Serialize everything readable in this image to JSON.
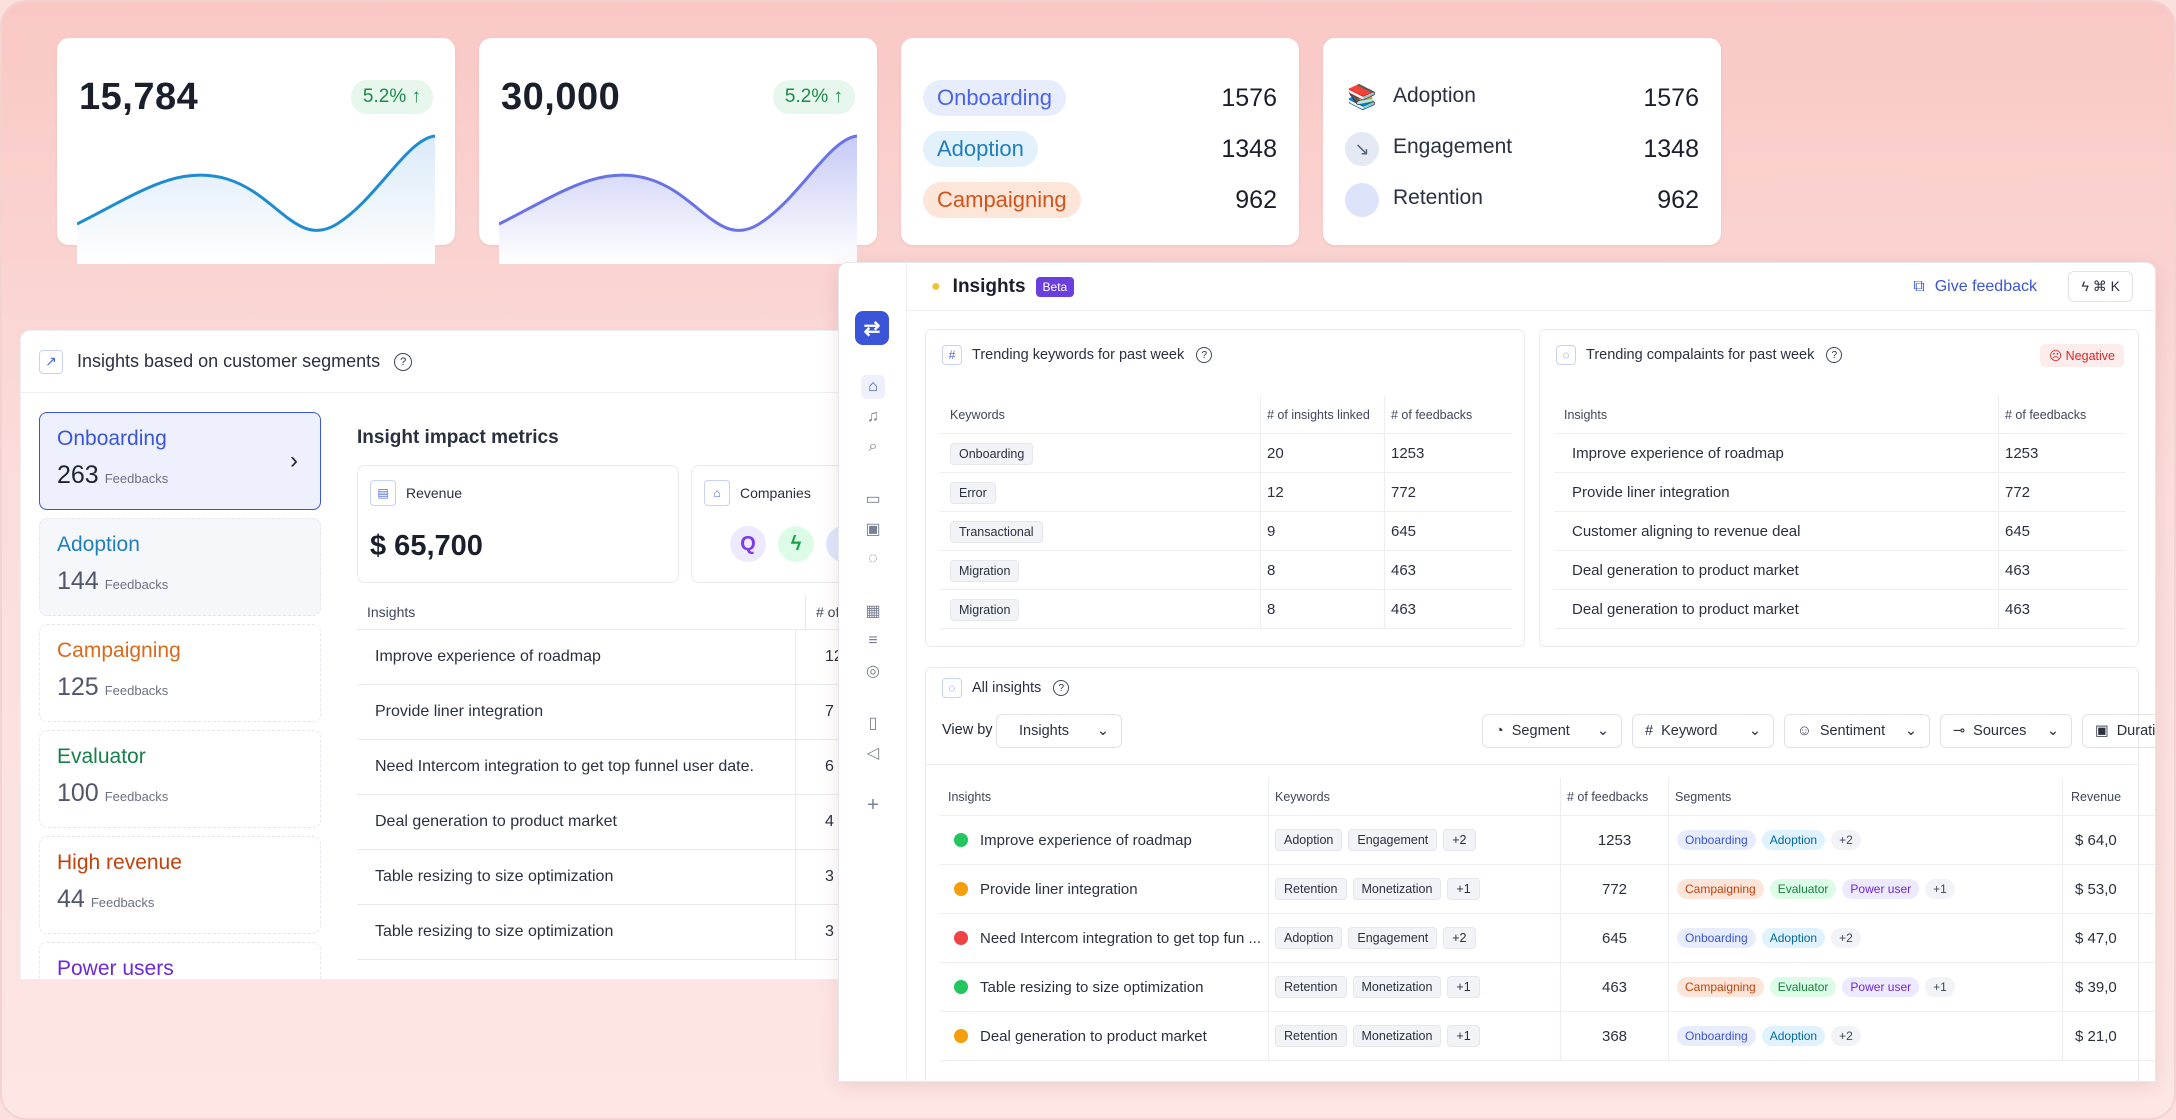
{
  "stats": [
    {
      "value": "15,784",
      "change": "5.2%",
      "color": "#1f8bd1"
    },
    {
      "value": "30,000",
      "change": "5.2%",
      "color": "#6a72e8"
    }
  ],
  "segment_counts": [
    {
      "label": "Onboarding",
      "value": "1576",
      "bg": "#e7edfd",
      "fg": "#4b64e6"
    },
    {
      "label": "Adoption",
      "value": "1348",
      "bg": "#e2f1fb",
      "fg": "#1f7fbf"
    },
    {
      "label": "Campaigning",
      "value": "962",
      "bg": "#fde6d9",
      "fg": "#d2541b"
    }
  ],
  "icon_counts": [
    {
      "label": "Adoption",
      "value": "1576",
      "icon": "books-icon"
    },
    {
      "label": "Engagement",
      "value": "1348",
      "icon": "chart-icon"
    },
    {
      "label": "Retention",
      "value": "962",
      "icon": "circle-icon"
    }
  ],
  "left": {
    "title": "Insights based on customer segments",
    "segments": [
      {
        "name": "Onboarding",
        "count": "263",
        "unit": "Feedbacks",
        "color": "#3b55d9"
      },
      {
        "name": "Adoption",
        "count": "144",
        "unit": "Feedbacks",
        "color": "#1f7fbf"
      },
      {
        "name": "Campaigning",
        "count": "125",
        "unit": "Feedbacks",
        "color": "#d96a1b"
      },
      {
        "name": "Evaluator",
        "count": "100",
        "unit": "Feedbacks",
        "color": "#17804a"
      },
      {
        "name": "High revenue",
        "count": "44",
        "unit": "Feedbacks",
        "color": "#c2410c"
      },
      {
        "name": "Power users",
        "count": "",
        "unit": "",
        "color": "#6d28d9"
      }
    ],
    "metrics_title": "Insight impact metrics",
    "revenue_label": "Revenue",
    "revenue_value": "$ 65,700",
    "companies_label": "Companies",
    "table_headers": [
      "Insights",
      "# of feed"
    ],
    "rows": [
      {
        "insight": "Improve experience of roadmap",
        "v": "12"
      },
      {
        "insight": "Provide liner integration",
        "v": "7"
      },
      {
        "insight": "Need Intercom integration to get top funnel user date.",
        "v": "6"
      },
      {
        "insight": "Deal generation to product market",
        "v": "4"
      },
      {
        "insight": "Table resizing to size optimization",
        "v": "3"
      },
      {
        "insight": "Table resizing to size optimization",
        "v": "3"
      }
    ]
  },
  "window": {
    "title": "Insights",
    "beta": "Beta",
    "feedback": "Give feedback",
    "shortcut": "⌘ K",
    "keywords_panel": {
      "title": "Trending keywords for past week",
      "headers": [
        "Keywords",
        "# of insights linked",
        "# of feedbacks"
      ],
      "rows": [
        [
          "Onboarding",
          "20",
          "1253"
        ],
        [
          "Error",
          "12",
          "772"
        ],
        [
          "Transactional",
          "9",
          "645"
        ],
        [
          "Migration",
          "8",
          "463"
        ],
        [
          "Migration",
          "8",
          "463"
        ]
      ]
    },
    "complaints_panel": {
      "title": "Trending compalaints for past week",
      "badge": "Negative",
      "headers": [
        "Insights",
        "# of feedbacks"
      ],
      "rows": [
        [
          "Improve experience of roadmap",
          "1253"
        ],
        [
          "Provide liner integration",
          "772"
        ],
        [
          "Customer aligning to revenue deal",
          "645"
        ],
        [
          "Deal generation to product market",
          "463"
        ],
        [
          "Deal generation to product market",
          "463"
        ]
      ]
    },
    "all": {
      "title": "All insights",
      "view_by": "View by",
      "view_value": "Insights",
      "filters": [
        "Segment",
        "Keyword",
        "Sentiment",
        "Sources",
        "Duration"
      ],
      "headers": [
        "Insights",
        "Keywords",
        "# of feedbacks",
        "Segments",
        "Revenue"
      ],
      "rows": [
        {
          "s": "#22c55e",
          "insight": "Improve experience of roadmap",
          "kw": [
            "Adoption",
            "Engagement",
            "+2"
          ],
          "n": "1253",
          "seg": [
            "Onboarding",
            "Adoption",
            "+2"
          ],
          "rev": "$ 64,0"
        },
        {
          "s": "#f59e0b",
          "insight": "Provide liner integration",
          "kw": [
            "Retention",
            "Monetization",
            "+1"
          ],
          "n": "772",
          "seg": [
            "Campaigning",
            "Evaluator",
            "Power user",
            "+1"
          ],
          "rev": "$ 53,0"
        },
        {
          "s": "#ef4444",
          "insight": "Need Intercom integration to get top fun ...",
          "kw": [
            "Adoption",
            "Engagement",
            "+2"
          ],
          "n": "645",
          "seg": [
            "Onboarding",
            "Adoption",
            "+2"
          ],
          "rev": "$ 47,0"
        },
        {
          "s": "#22c55e",
          "insight": "Table resizing to size optimization",
          "kw": [
            "Retention",
            "Monetization",
            "+1"
          ],
          "n": "463",
          "seg": [
            "Campaigning",
            "Evaluator",
            "Power user",
            "+1"
          ],
          "rev": "$ 39,0"
        },
        {
          "s": "#f59e0b",
          "insight": "Deal generation to product market",
          "kw": [
            "Retention",
            "Monetization",
            "+1"
          ],
          "n": "368",
          "seg": [
            "Onboarding",
            "Adoption",
            "+2"
          ],
          "rev": "$ 21,0"
        }
      ]
    }
  }
}
